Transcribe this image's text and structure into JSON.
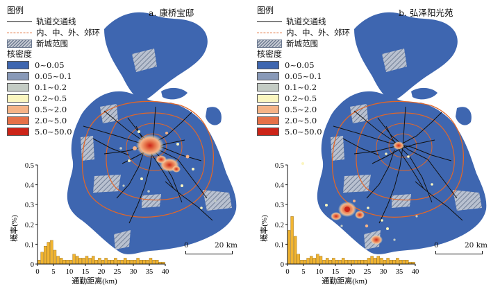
{
  "colors": {
    "sea": "#ffffff",
    "land": "#3e66b0",
    "hatch": "#8b96ab",
    "rail": "#111111",
    "ring": "#e0662a",
    "bar": "#f1b431",
    "bar_edge": "#8a6414"
  },
  "legend": {
    "title": "图例",
    "rail": "轨道交通线",
    "rings": "内、中、外、郊环",
    "newtown": "新城范围",
    "density_title": "核密度",
    "classes": [
      {
        "label": "0~0.05",
        "color": "#3e66b0"
      },
      {
        "label": "0.05~0.1",
        "color": "#8899b8"
      },
      {
        "label": "0.1~0.2",
        "color": "#c4ccc4"
      },
      {
        "label": "0.2~0.5",
        "color": "#fbf6bf"
      },
      {
        "label": "0.5~2.0",
        "color": "#f5b386"
      },
      {
        "label": "2.0~5.0",
        "color": "#e57047"
      },
      {
        "label": "5.0~50.0",
        "color": "#cc2418"
      }
    ]
  },
  "panels": [
    {
      "title": "a. 康桥宝邸",
      "scale_label_zero": "0",
      "scale_label_end": "20 km",
      "chart_data": {
        "type": "bar",
        "xlabel": "通勤距离(km)",
        "ylabel": "概率(%)",
        "xlim": [
          0,
          40
        ],
        "ylim": [
          0,
          0.5
        ],
        "xticks": [
          0,
          5,
          10,
          15,
          20,
          25,
          30,
          35,
          40
        ],
        "yticks": [
          0,
          0.1,
          0.2,
          0.3,
          0.4,
          0.5
        ],
        "bin_width_km": 1,
        "bin_starts": [
          0,
          1,
          2,
          3,
          4,
          5,
          6,
          7,
          8,
          9,
          10,
          11,
          12,
          13,
          14,
          15,
          16,
          17,
          18,
          19,
          20,
          21,
          22,
          23,
          24,
          25,
          26,
          27,
          28,
          29,
          30,
          31,
          32,
          33,
          34,
          35,
          36,
          37,
          38,
          39
        ],
        "values": [
          0.02,
          0.06,
          0.09,
          0.11,
          0.12,
          0.07,
          0.04,
          0.03,
          0.02,
          0.02,
          0.02,
          0.05,
          0.04,
          0.03,
          0.03,
          0.04,
          0.03,
          0.04,
          0.02,
          0.03,
          0.02,
          0.03,
          0.02,
          0.02,
          0.03,
          0.02,
          0.02,
          0.03,
          0.02,
          0.02,
          0.02,
          0.03,
          0.02,
          0.02,
          0.02,
          0.03,
          0.02,
          0.02,
          0.01,
          0.01
        ]
      }
    },
    {
      "title": "b. 弘泽阳光苑",
      "scale_label_zero": "0",
      "scale_label_end": "20 km",
      "chart_data": {
        "type": "bar",
        "xlabel": "通勤距离(km)",
        "ylabel": "概率(%)",
        "xlim": [
          0,
          40
        ],
        "ylim": [
          0,
          0.5
        ],
        "xticks": [
          0,
          5,
          10,
          15,
          20,
          25,
          30,
          35,
          40
        ],
        "yticks": [
          0,
          0.1,
          0.2,
          0.3,
          0.4,
          0.5
        ],
        "bin_width_km": 1,
        "bin_starts": [
          0,
          1,
          2,
          3,
          4,
          5,
          6,
          7,
          8,
          9,
          10,
          11,
          12,
          13,
          14,
          15,
          16,
          17,
          18,
          19,
          20,
          21,
          22,
          23,
          24,
          25,
          26,
          27,
          28,
          29,
          30,
          31,
          32,
          33,
          34,
          35,
          36,
          37,
          38,
          39
        ],
        "values": [
          0.17,
          0.24,
          0.14,
          0.05,
          0.02,
          0.02,
          0.03,
          0.04,
          0.03,
          0.05,
          0.04,
          0.02,
          0.03,
          0.02,
          0.03,
          0.02,
          0.02,
          0.03,
          0.02,
          0.02,
          0.02,
          0.02,
          0.02,
          0.02,
          0.02,
          0.03,
          0.04,
          0.03,
          0.04,
          0.03,
          0.02,
          0.03,
          0.02,
          0.02,
          0.03,
          0.02,
          0.02,
          0.02,
          0.01,
          0.01
        ]
      }
    }
  ]
}
